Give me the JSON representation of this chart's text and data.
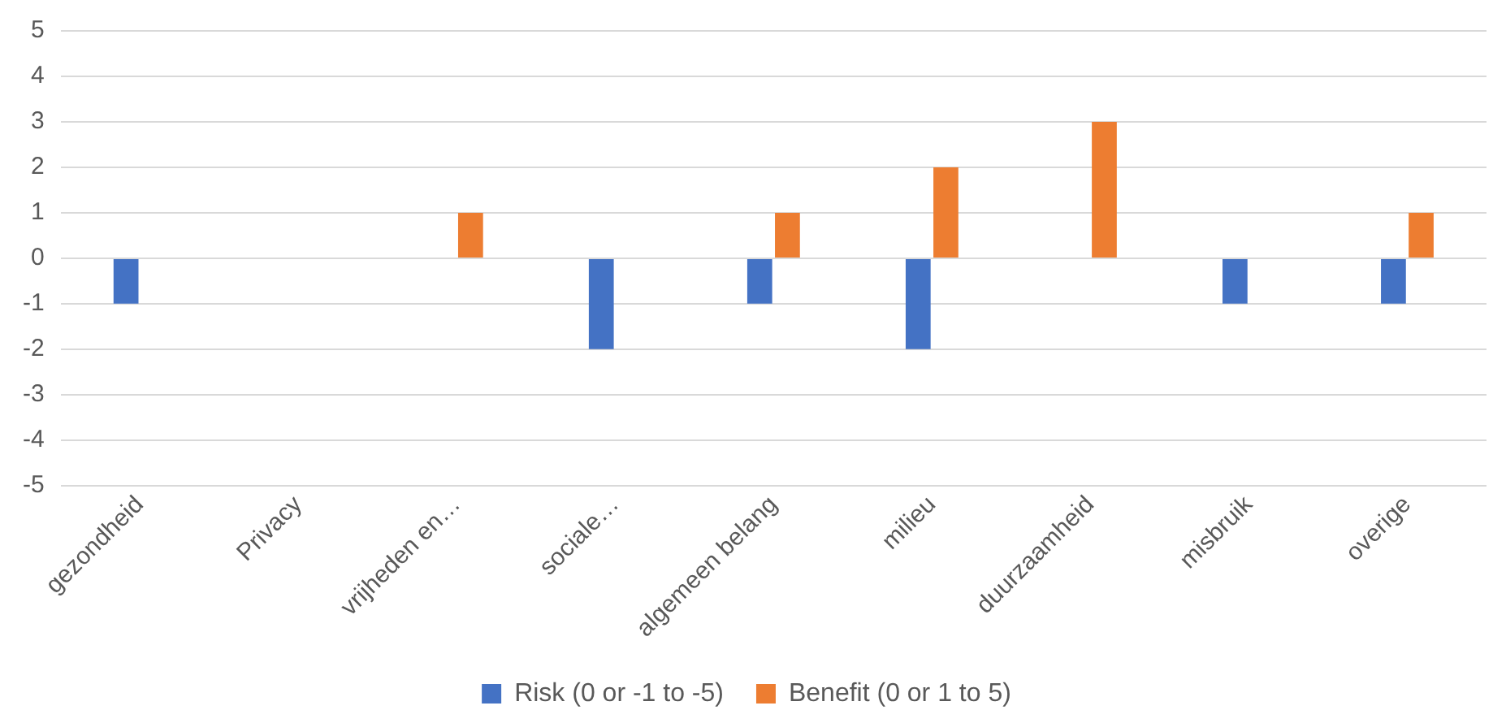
{
  "chart_data": {
    "type": "bar",
    "categories": [
      "gezondheid",
      "Privacy",
      "vrijheden en…",
      "sociale…",
      "algemeen belang",
      "milieu",
      "duurzaamheid",
      "misbruik",
      "overige"
    ],
    "series": [
      {
        "name": "Risk (0 or -1 to -5)",
        "color": "#4472c4",
        "values": [
          -1,
          0,
          0,
          -2,
          -1,
          -2,
          0,
          -1,
          -1
        ]
      },
      {
        "name": "Benefit (0 or 1 to 5)",
        "color": "#ed7d31",
        "values": [
          0,
          0,
          1,
          0,
          1,
          2,
          3,
          0,
          1
        ]
      }
    ],
    "ylim": [
      -5,
      5
    ],
    "yticks": [
      -5,
      -4,
      -3,
      -2,
      -1,
      0,
      1,
      2,
      3,
      4,
      5
    ],
    "grid": "y",
    "legend": "bottom"
  }
}
